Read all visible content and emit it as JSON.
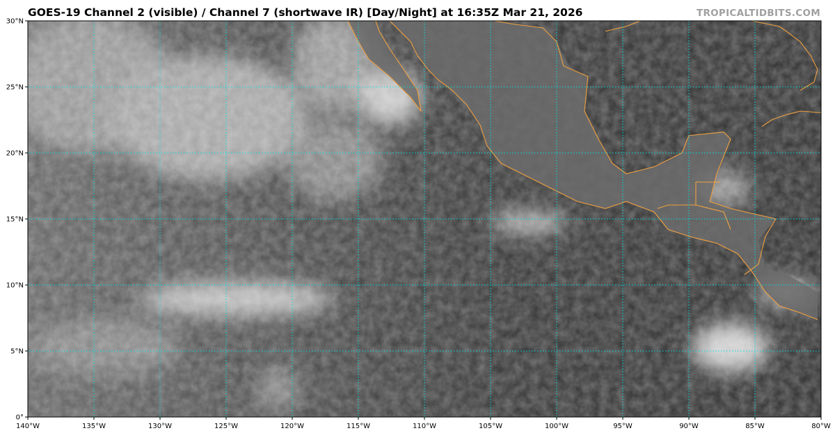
{
  "title": "GOES-19 Channel 2 (visible) / Channel 7 (shortwave IR) [Day/Night] at 16:35Z Mar 21, 2026",
  "brand": "TROPICALTIDBITS.COM",
  "map": {
    "lon_range": [
      -140,
      -80
    ],
    "lat_range": [
      0,
      30
    ],
    "grid_step_deg": 5,
    "grid_color": "#00e0e0",
    "coastline_color": "#f0a040",
    "x_tick_labels": [
      "140°W",
      "135°W",
      "130°W",
      "125°W",
      "120°W",
      "115°W",
      "110°W",
      "105°W",
      "100°W",
      "95°W",
      "90°W",
      "85°W",
      "80°W"
    ],
    "y_tick_labels": [
      "0°",
      "5°N",
      "10°N",
      "15°N",
      "20°N",
      "25°N",
      "30°N"
    ]
  }
}
